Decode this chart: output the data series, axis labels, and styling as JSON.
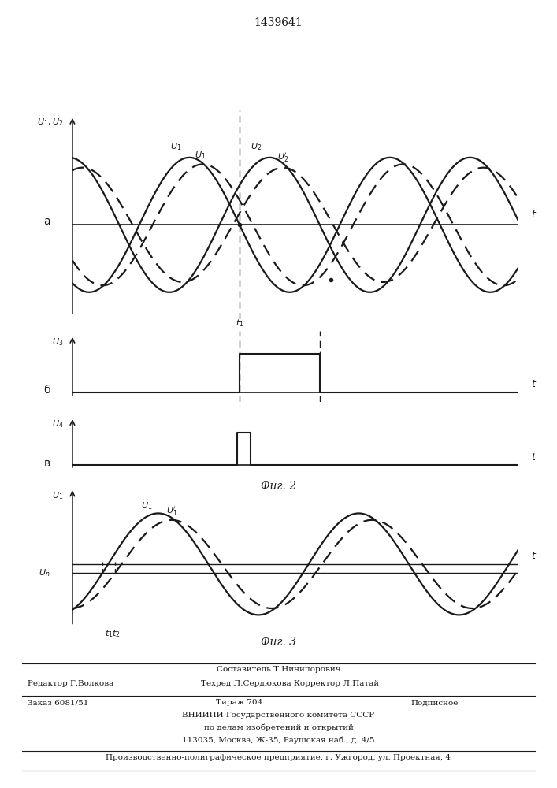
{
  "title": "1439641",
  "fig2_caption": "Фиг. 2",
  "fig3_caption": "Фиг. 3",
  "footer_line1": "Составитель Т.Ничипорович",
  "footer_line2_left": "Редактор Г.Волкова",
  "footer_line2_right": "Техред Л.Сердюкова Корректор Л.Патай",
  "footer_line3_left": "Заказ 6081/51",
  "footer_line3_mid": "Тираж 704",
  "footer_line3_right": "Подписное",
  "footer_line4": "ВНИИПИ Государственного комитета СССР",
  "footer_line5": "по делам изобретений и открытий",
  "footer_line6": "113035, Москва, Ж-35, Раушская наб., д. 4/5",
  "footer_line7": "Производственно-полиграфическое предприятие, г. Ужгород, ул. Проектная, 4",
  "bg_color": "#ffffff",
  "line_color": "#1a1a1a"
}
